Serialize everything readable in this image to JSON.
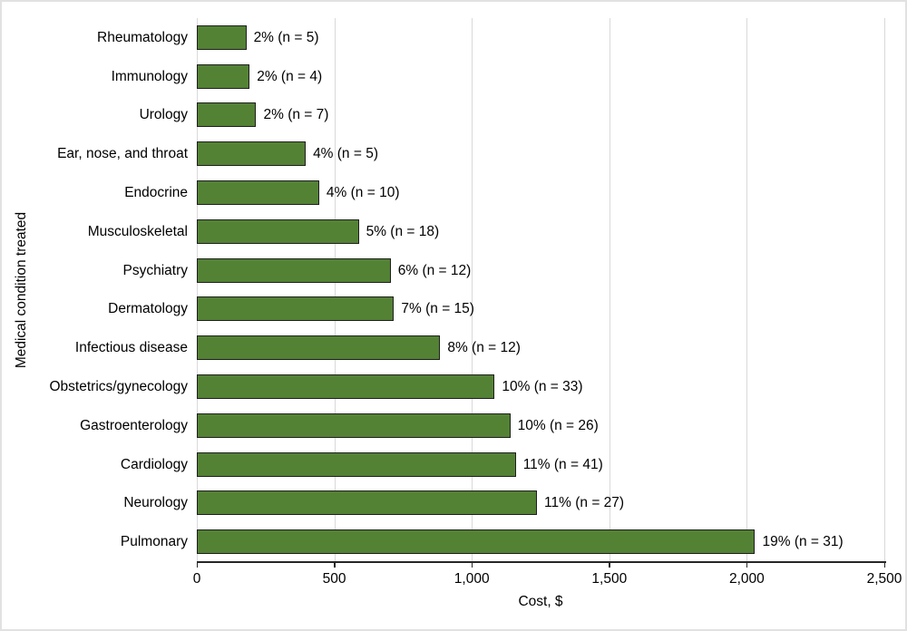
{
  "figure": {
    "background": "#ffffff",
    "border_color": "#e1e1e1",
    "text_color": "#000000"
  },
  "chart_data": {
    "type": "bar",
    "orientation": "horizontal",
    "title": "",
    "xlabel": "Cost, $",
    "ylabel": "Medical condition treated",
    "xlim": [
      0,
      2500
    ],
    "xticks": [
      0,
      500,
      1000,
      1500,
      2000,
      2500
    ],
    "xtick_labels": [
      "0",
      "500",
      "1,000",
      "1,500",
      "2,000",
      "2,500"
    ],
    "grid": "vertical-gridlines-on",
    "legend": "none",
    "bar_color": "#548235",
    "bar_border_color": "#1e1e1e",
    "gridline_color": "#d9d9d9",
    "axis_line_color": "#262626",
    "categories": [
      "Rheumatology",
      "Immunology",
      "Urology",
      "Ear, nose, and throat",
      "Endocrine",
      "Musculoskeletal",
      "Psychiatry",
      "Dermatology",
      "Infectious disease",
      "Obstetrics/gynecology",
      "Gastroenterology",
      "Cardiology",
      "Neurology",
      "Pulmonary"
    ],
    "values": [
      180,
      192,
      216,
      396,
      445,
      589,
      705,
      717,
      885,
      1083,
      1140,
      1160,
      1237,
      2030
    ],
    "bar_labels": [
      "2% (n = 5)",
      "2% (n = 4)",
      "2% (n = 7)",
      "4% (n = 5)",
      "4% (n = 10)",
      "5% (n = 18)",
      "6% (n = 12)",
      "7% (n = 15)",
      "8% (n = 12)",
      "10% (n = 33)",
      "10% (n = 26)",
      "11% (n = 41)",
      "11% (n = 27)",
      "19% (n = 31)"
    ]
  }
}
